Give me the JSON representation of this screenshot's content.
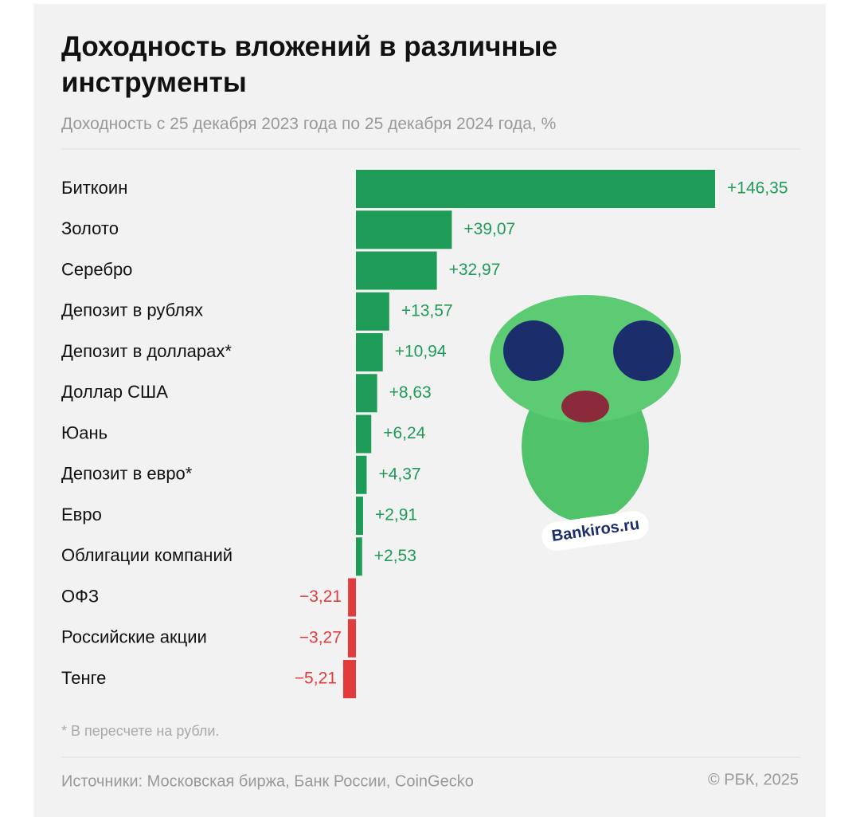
{
  "chart_data": {
    "type": "bar",
    "orientation": "horizontal",
    "title": "Доходность вложений в различные инструменты",
    "subtitle": "Доходность с 25 декабря 2023 года по 25 декабря 2024 года, %",
    "categories": [
      "Биткоин",
      "Золото",
      "Серебро",
      "Депозит в рублях",
      "Депозит в долларах*",
      "Доллар США",
      "Юань",
      "Депозит в евро*",
      "Евро",
      "Облигации компаний",
      "ОФЗ",
      "Российские акции",
      "Тенге"
    ],
    "values": [
      146.35,
      39.07,
      32.97,
      13.57,
      10.94,
      8.63,
      6.24,
      4.37,
      2.91,
      2.53,
      -3.21,
      -3.27,
      -5.21
    ],
    "value_labels": [
      "+146,35",
      "+39,07",
      "+32,97",
      "+13,57",
      "+10,94",
      "+8,63",
      "+6,24",
      "+4,37",
      "+2,91",
      "+2,53",
      "−3,21",
      "−3,27",
      "−5,21"
    ],
    "colors": {
      "positive": "#1e9b57",
      "negative": "#e23b3b"
    },
    "footnote": "* В пересчете на рубли.",
    "source": "Источники: Московская биржа, Банк России, CoinGecko",
    "copyright": "© РБК, 2025",
    "watermark": "Bankiros.ru"
  }
}
